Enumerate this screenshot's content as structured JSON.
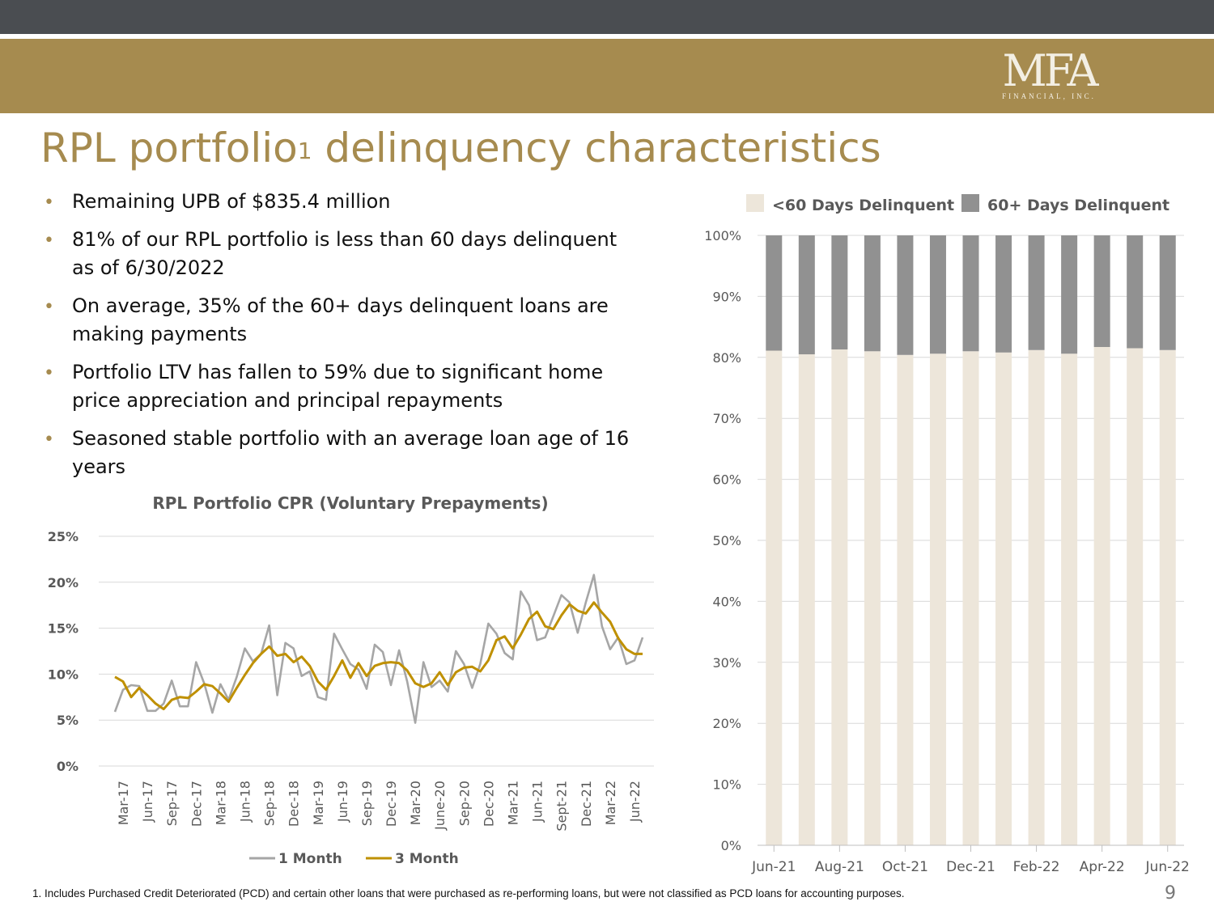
{
  "brand": {
    "logo_text": "MFA",
    "logo_sub": "FINANCIAL, INC.",
    "colors": {
      "gold": "#a68b4f",
      "dark_bar": "#4a4d51",
      "cpr_1m": "#a6a6a6",
      "cpr_3m": "#bf9000",
      "lt60": "#ede6da",
      "gt60": "#919191"
    }
  },
  "slide": {
    "title_main": "RPL portfolio",
    "title_sup": "1",
    "title_rest": " delinquency characteristics",
    "page_number": "9",
    "footnote": "1. Includes Purchased Credit Deteriorated (PCD) and certain other loans that were purchased as re-performing loans, but were not classified as PCD loans for accounting purposes."
  },
  "bullets": [
    "Remaining UPB of $835.4 million",
    "81% of our RPL portfolio is less than 60 days delinquent as of 6/30/2022",
    "On average, 35% of the 60+ days delinquent loans are making payments",
    "Portfolio LTV has fallen to 59% due to significant home price appreciation and principal repayments",
    "Seasoned stable portfolio with an average loan age of 16 years"
  ],
  "chart_data": [
    {
      "type": "line",
      "title": "RPL Portfolio  CPR (Voluntary Prepayments)",
      "ylim": [
        0,
        25
      ],
      "y_ticks": [
        "0%",
        "5%",
        "10%",
        "15%",
        "20%",
        "25%"
      ],
      "x_tick_labels": [
        "Mar-17",
        "Jun-17",
        "Sep-17",
        "Dec-17",
        "Mar-18",
        "Jun-18",
        "Sep-18",
        "Dec-18",
        "Mar-19",
        "Jun-19",
        "Sep-19",
        "Dec-19",
        "Mar-20",
        "June-20",
        "Sep-20",
        "Dec-20",
        "Mar-21",
        "Jun-21",
        "Sept-21",
        "Dec-21",
        "Mar-22",
        "Jun-22"
      ],
      "x_start": "Feb-17",
      "x_end": "Jun-22",
      "grid": true,
      "legend_position": "bottom",
      "series": [
        {
          "name": "1 Month",
          "values": [
            5.9,
            8.3,
            8.8,
            8.7,
            6.0,
            6.0,
            6.8,
            9.3,
            6.5,
            6.5,
            11.3,
            9.0,
            5.8,
            8.9,
            7.2,
            9.7,
            12.8,
            11.4,
            12.2,
            15.3,
            7.7,
            13.4,
            12.8,
            9.8,
            10.3,
            7.5,
            7.2,
            14.4,
            12.7,
            11.1,
            10.5,
            8.4,
            13.2,
            12.4,
            8.8,
            12.6,
            9.2,
            4.7,
            11.3,
            8.6,
            9.3,
            8.1,
            12.5,
            11.1,
            8.5,
            11.1,
            15.5,
            14.4,
            12.3,
            11.6,
            19.0,
            17.5,
            13.7,
            14.0,
            16.3,
            18.6,
            17.8,
            14.5,
            17.8,
            20.8,
            15.2,
            12.7,
            14.0,
            11.1,
            11.5,
            14.0
          ]
        },
        {
          "name": "3 Month",
          "values": [
            9.7,
            9.2,
            7.5,
            8.5,
            7.7,
            6.8,
            6.2,
            7.2,
            7.5,
            7.4,
            8.1,
            8.9,
            8.7,
            7.9,
            7.0,
            8.5,
            9.9,
            11.2,
            12.2,
            13.0,
            12.0,
            12.2,
            11.3,
            11.9,
            10.9,
            9.2,
            8.3,
            9.8,
            11.5,
            9.6,
            11.2,
            9.8,
            10.9,
            11.2,
            11.3,
            11.2,
            10.4,
            9.0,
            8.6,
            9.0,
            10.2,
            8.8,
            10.2,
            10.7,
            10.8,
            10.3,
            11.5,
            13.7,
            14.1,
            12.8,
            14.3,
            16.0,
            16.8,
            15.2,
            14.9,
            16.4,
            17.6,
            16.9,
            16.6,
            17.8,
            16.7,
            15.7,
            13.9,
            12.7,
            12.2,
            12.2
          ]
        }
      ]
    },
    {
      "type": "bar",
      "stacked": true,
      "categories": [
        "Jun-21",
        "Jul-21",
        "Aug-21",
        "Sep-21",
        "Oct-21",
        "Nov-21",
        "Dec-21",
        "Jan-22",
        "Feb-22",
        "Mar-22",
        "Apr-22",
        "May-22",
        "Jun-22"
      ],
      "x_tick_labels": [
        "Jun-21",
        "Aug-21",
        "Oct-21",
        "Dec-21",
        "Feb-22",
        "Apr-22",
        "Jun-22"
      ],
      "ylim": [
        0,
        100
      ],
      "y_ticks": [
        "0%",
        "10%",
        "20%",
        "30%",
        "40%",
        "50%",
        "60%",
        "70%",
        "80%",
        "90%",
        "100%"
      ],
      "grid": true,
      "legend_position": "top",
      "series": [
        {
          "name": "<60 Days Delinquent",
          "values": [
            81.1,
            80.5,
            81.3,
            81.0,
            80.4,
            80.6,
            81.0,
            80.8,
            81.2,
            80.6,
            81.7,
            81.5,
            81.2
          ]
        },
        {
          "name": "60+ Days Delinquent",
          "values": [
            18.9,
            19.5,
            18.7,
            19.0,
            19.6,
            19.4,
            19.0,
            19.2,
            18.8,
            19.4,
            18.3,
            18.5,
            18.8
          ]
        }
      ]
    }
  ]
}
